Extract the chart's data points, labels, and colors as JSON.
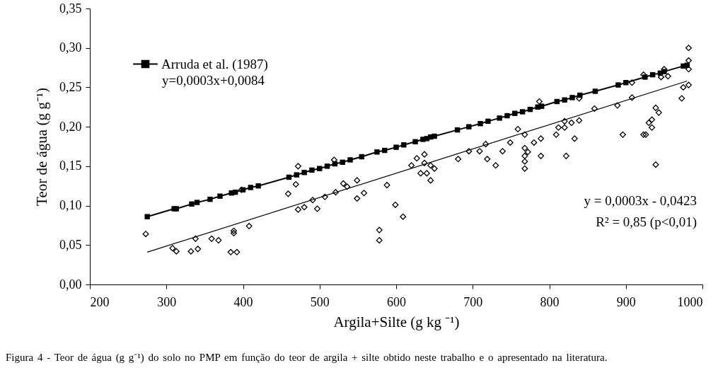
{
  "chart_data": {
    "type": "scatter",
    "xlabel": "Argila+Silte (g kg ⁻¹)",
    "ylabel": "Teor de água (g g⁻¹)",
    "xlim": [
      200,
      1000
    ],
    "xticks": [
      200,
      300,
      400,
      500,
      600,
      700,
      800,
      900,
      1000
    ],
    "ylim": [
      0,
      0.35
    ],
    "yticks": [
      {
        "value": 0,
        "label": "0,00"
      },
      {
        "value": 0.05,
        "label": "0,05"
      },
      {
        "value": 0.1,
        "label": "0,10"
      },
      {
        "value": 0.15,
        "label": "0,15"
      },
      {
        "value": 0.2,
        "label": "0,20"
      },
      {
        "value": 0.25,
        "label": "0,25"
      },
      {
        "value": 0.3,
        "label": "0,30"
      },
      {
        "value": 0.35,
        "label": "0,35"
      }
    ],
    "grid": false,
    "legend": "top left",
    "annotations": [
      "y=0,0003x+0,0084",
      "y = 0,0003x - 0,0423",
      "R² = 0,85 (p<0,01)",
      "Figura 4 - Teor de água (g g⁻¹) do solo no PMP em função do teor de argila + silte obtido neste trabalho e o apresentado na literatura."
    ],
    "series": [
      {
        "name": "Arruda et al. (1987)",
        "type": "line",
        "marker": "square",
        "color": "#000000",
        "x": [
          275,
          310,
          313,
          333,
          340,
          357,
          370,
          385,
          390,
          400,
          410,
          420,
          460,
          470,
          480,
          490,
          500,
          510,
          520,
          530,
          540,
          555,
          575,
          585,
          600,
          610,
          625,
          635,
          640,
          645,
          650,
          680,
          695,
          710,
          720,
          735,
          745,
          755,
          765,
          775,
          785,
          790,
          810,
          820,
          830,
          840,
          860,
          890,
          900,
          925,
          935,
          945,
          950,
          975,
          980
        ],
        "values": [
          0.086,
          0.096,
          0.096,
          0.102,
          0.104,
          0.108,
          0.112,
          0.116,
          0.117,
          0.12,
          0.123,
          0.125,
          0.136,
          0.139,
          0.142,
          0.145,
          0.147,
          0.15,
          0.153,
          0.155,
          0.158,
          0.162,
          0.168,
          0.17,
          0.174,
          0.177,
          0.181,
          0.184,
          0.185,
          0.187,
          0.188,
          0.196,
          0.2,
          0.204,
          0.207,
          0.211,
          0.214,
          0.217,
          0.219,
          0.222,
          0.225,
          0.226,
          0.232,
          0.234,
          0.237,
          0.24,
          0.245,
          0.253,
          0.256,
          0.263,
          0.266,
          0.268,
          0.27,
          0.277,
          0.278
        ]
      },
      {
        "type": "scatter",
        "marker": "diamond",
        "color": "#000000",
        "x": [
          273,
          308,
          313,
          332,
          341,
          338,
          359,
          368,
          384,
          392,
          388,
          388,
          408,
          398,
          459,
          472,
          469,
          472,
          480,
          491,
          497,
          519,
          507,
          521,
          531,
          536,
          549,
          549,
          558,
          588,
          599,
          609,
          578,
          578,
          620,
          627,
          637,
          637,
          632,
          640,
          645,
          650,
          645,
          681,
          695,
          709,
          717,
          719,
          730,
          739,
          749,
          759,
          768,
          768,
          772,
          768,
          768,
          768,
          780,
          789,
          789,
          787,
          809,
          812,
          820,
          820,
          829,
          839,
          833,
          822,
          839,
          859,
          889,
          896,
          908,
          908,
          923,
          923,
          926,
          930,
          934,
          934,
          939,
          943,
          939,
          950,
          946,
          955,
          973,
          975,
          982,
          982,
          982,
          982
        ],
        "values": [
          0.064,
          0.046,
          0.042,
          0.042,
          0.045,
          0.058,
          0.058,
          0.056,
          0.041,
          0.041,
          0.068,
          0.065,
          0.074,
          0.12,
          0.115,
          0.15,
          0.127,
          0.095,
          0.098,
          0.107,
          0.096,
          0.158,
          0.111,
          0.117,
          0.128,
          0.124,
          0.132,
          0.109,
          0.116,
          0.126,
          0.101,
          0.086,
          0.069,
          0.056,
          0.151,
          0.16,
          0.165,
          0.154,
          0.141,
          0.141,
          0.151,
          0.147,
          0.132,
          0.159,
          0.169,
          0.169,
          0.178,
          0.159,
          0.151,
          0.169,
          0.18,
          0.197,
          0.19,
          0.173,
          0.168,
          0.163,
          0.156,
          0.147,
          0.18,
          0.185,
          0.163,
          0.232,
          0.19,
          0.199,
          0.207,
          0.199,
          0.205,
          0.208,
          0.185,
          0.163,
          0.236,
          0.223,
          0.227,
          0.19,
          0.256,
          0.237,
          0.266,
          0.19,
          0.19,
          0.205,
          0.209,
          0.199,
          0.224,
          0.218,
          0.152,
          0.273,
          0.263,
          0.264,
          0.236,
          0.25,
          0.3,
          0.284,
          0.273,
          0.253
        ]
      },
      {
        "type": "line",
        "marker": "none",
        "color": "#000000",
        "x": [
          275,
          980
        ],
        "values": [
          0.041,
          0.258
        ]
      }
    ]
  }
}
